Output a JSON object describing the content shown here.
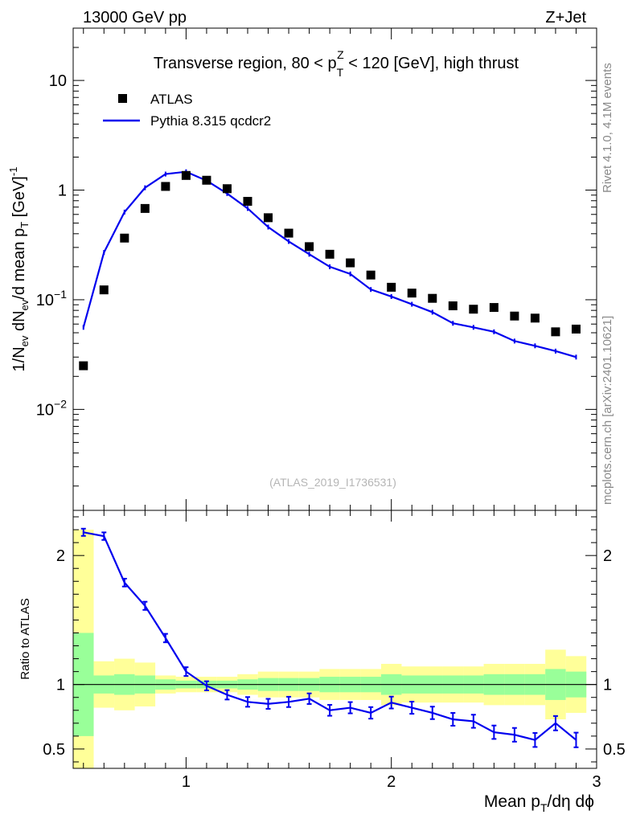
{
  "header": {
    "left": "13000 GeV pp",
    "right": "Z+Jet"
  },
  "side": {
    "version": "Rivet 4.1.0,  4.1M events",
    "source": "mcplots.cern.ch [arXiv:2401.10621]"
  },
  "colors": {
    "data": "#000000",
    "mc": "#0000ee",
    "band_inner": "#99ff99",
    "band_outer": "#ffff99"
  },
  "chart_data": [
    {
      "type": "scatter",
      "panel": "main",
      "title": "Transverse region, 80 < p_T^Z < 120 [GeV], high thrust",
      "ylabel": "1/N_ev dN_ev/d mean p_T [GeV]^-1",
      "yscale": "log",
      "xlim": [
        0.45,
        3.0
      ],
      "ylim": [
        0.0012,
        30
      ],
      "y_ticks": [
        {
          "v": 10,
          "label": "10"
        },
        {
          "v": 1,
          "label": "1"
        },
        {
          "v": 0.1,
          "base": "10",
          "exp": "−1"
        },
        {
          "v": 0.01,
          "base": "10",
          "exp": "−2"
        }
      ],
      "watermark": "(ATLAS_2019_I1736531)",
      "x": [
        0.5,
        0.6,
        0.7,
        0.8,
        0.9,
        1.0,
        1.1,
        1.2,
        1.3,
        1.4,
        1.5,
        1.6,
        1.7,
        1.8,
        1.9,
        2.0,
        2.1,
        2.2,
        2.3,
        2.4,
        2.5,
        2.6,
        2.7,
        2.8,
        2.9
      ],
      "series": [
        {
          "name": "ATLAS",
          "style": "markers",
          "values": [
            0.025,
            0.123,
            0.365,
            0.68,
            1.08,
            1.36,
            1.23,
            1.03,
            0.79,
            0.56,
            0.405,
            0.305,
            0.26,
            0.217,
            0.168,
            0.13,
            0.115,
            0.103,
            0.088,
            0.082,
            0.085,
            0.071,
            0.068,
            0.051,
            0.054
          ]
        },
        {
          "name": "Pythia 8.315 qcdcr2",
          "style": "line",
          "values": [
            0.056,
            0.27,
            0.63,
            1.05,
            1.4,
            1.47,
            1.22,
            0.93,
            0.68,
            0.46,
            0.34,
            0.26,
            0.2,
            0.172,
            0.124,
            0.107,
            0.091,
            0.077,
            0.061,
            0.056,
            0.051,
            0.042,
            0.038,
            0.034,
            0.03
          ]
        }
      ]
    },
    {
      "type": "line",
      "panel": "ratio",
      "ylabel": "Ratio to ATLAS",
      "xlabel": "Mean p_T/dη dϕ",
      "xlim": [
        0.45,
        3.0
      ],
      "ylim": [
        0.35,
        2.35
      ],
      "x_ticks": [
        1,
        2,
        3
      ],
      "y_ticks": [
        0.5,
        1,
        2
      ],
      "reference": 1,
      "x": [
        0.5,
        0.6,
        0.7,
        0.8,
        0.9,
        1.0,
        1.1,
        1.2,
        1.3,
        1.4,
        1.5,
        1.6,
        1.7,
        1.8,
        1.9,
        2.0,
        2.1,
        2.2,
        2.3,
        2.4,
        2.5,
        2.6,
        2.7,
        2.8,
        2.9
      ],
      "series": [
        {
          "name": "Pythia 8.315 qcdcr2",
          "values": [
            2.18,
            2.15,
            1.79,
            1.61,
            1.36,
            1.1,
            0.99,
            0.92,
            0.865,
            0.85,
            0.865,
            0.89,
            0.8,
            0.82,
            0.78,
            0.86,
            0.82,
            0.78,
            0.73,
            0.715,
            0.63,
            0.61,
            0.57,
            0.7,
            0.57
          ]
        }
      ],
      "bands": {
        "edges": [
          0.45,
          0.55,
          0.65,
          0.75,
          0.85,
          0.95,
          1.05,
          1.15,
          1.25,
          1.35,
          1.45,
          1.55,
          1.65,
          1.75,
          1.85,
          1.95,
          2.05,
          2.15,
          2.25,
          2.35,
          2.45,
          2.55,
          2.65,
          2.75,
          2.85,
          2.95
        ],
        "inner": [
          0.6,
          0.93,
          0.92,
          0.93,
          0.96,
          0.97,
          0.97,
          0.97,
          0.96,
          0.95,
          0.95,
          0.95,
          0.94,
          0.94,
          0.94,
          0.92,
          0.93,
          0.93,
          0.93,
          0.93,
          0.92,
          0.92,
          0.92,
          0.88,
          0.9
        ],
        "inner_hi": [
          1.4,
          1.07,
          1.08,
          1.07,
          1.04,
          1.03,
          1.03,
          1.03,
          1.04,
          1.05,
          1.05,
          1.05,
          1.06,
          1.06,
          1.06,
          1.08,
          1.07,
          1.07,
          1.07,
          1.07,
          1.08,
          1.08,
          1.08,
          1.12,
          1.1
        ],
        "outer_lo": [
          0.3,
          0.82,
          0.8,
          0.83,
          0.93,
          0.94,
          0.94,
          0.94,
          0.92,
          0.9,
          0.9,
          0.9,
          0.88,
          0.88,
          0.88,
          0.84,
          0.86,
          0.86,
          0.86,
          0.86,
          0.84,
          0.84,
          0.84,
          0.73,
          0.78
        ],
        "outer_hi": [
          2.2,
          1.18,
          1.2,
          1.17,
          1.07,
          1.06,
          1.06,
          1.06,
          1.08,
          1.1,
          1.1,
          1.1,
          1.12,
          1.12,
          1.12,
          1.16,
          1.14,
          1.14,
          1.14,
          1.14,
          1.16,
          1.16,
          1.16,
          1.27,
          1.22
        ]
      }
    }
  ]
}
